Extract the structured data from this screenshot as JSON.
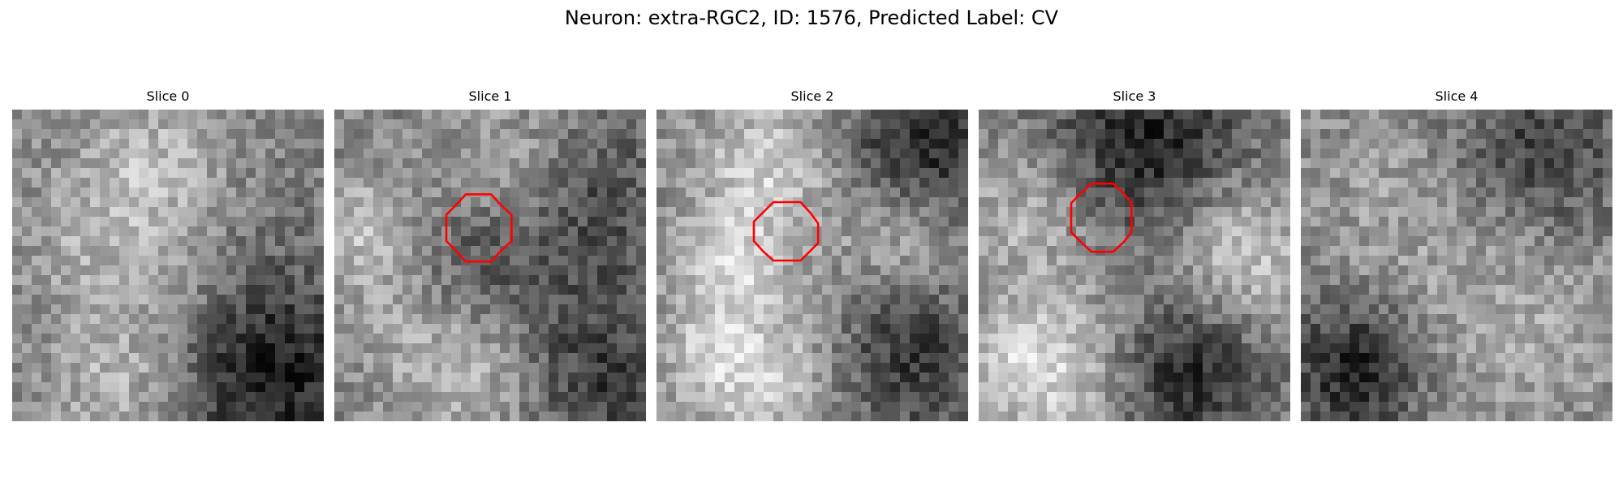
{
  "title": "Neuron: extra-RGC2, ID: 1576, Predicted Label: CV",
  "panels": [
    {
      "title": "Slice 0",
      "contour": false,
      "seed": 17
    },
    {
      "title": "Slice 1",
      "contour": true,
      "seed": 41
    },
    {
      "title": "Slice 2",
      "contour": true,
      "seed": 73
    },
    {
      "title": "Slice 3",
      "contour": true,
      "seed": 109
    },
    {
      "title": "Slice 4",
      "contour": false,
      "seed": 151
    }
  ],
  "colors": {
    "contour": "#ff0000",
    "background": "#ffffff",
    "text": "#000000"
  }
}
